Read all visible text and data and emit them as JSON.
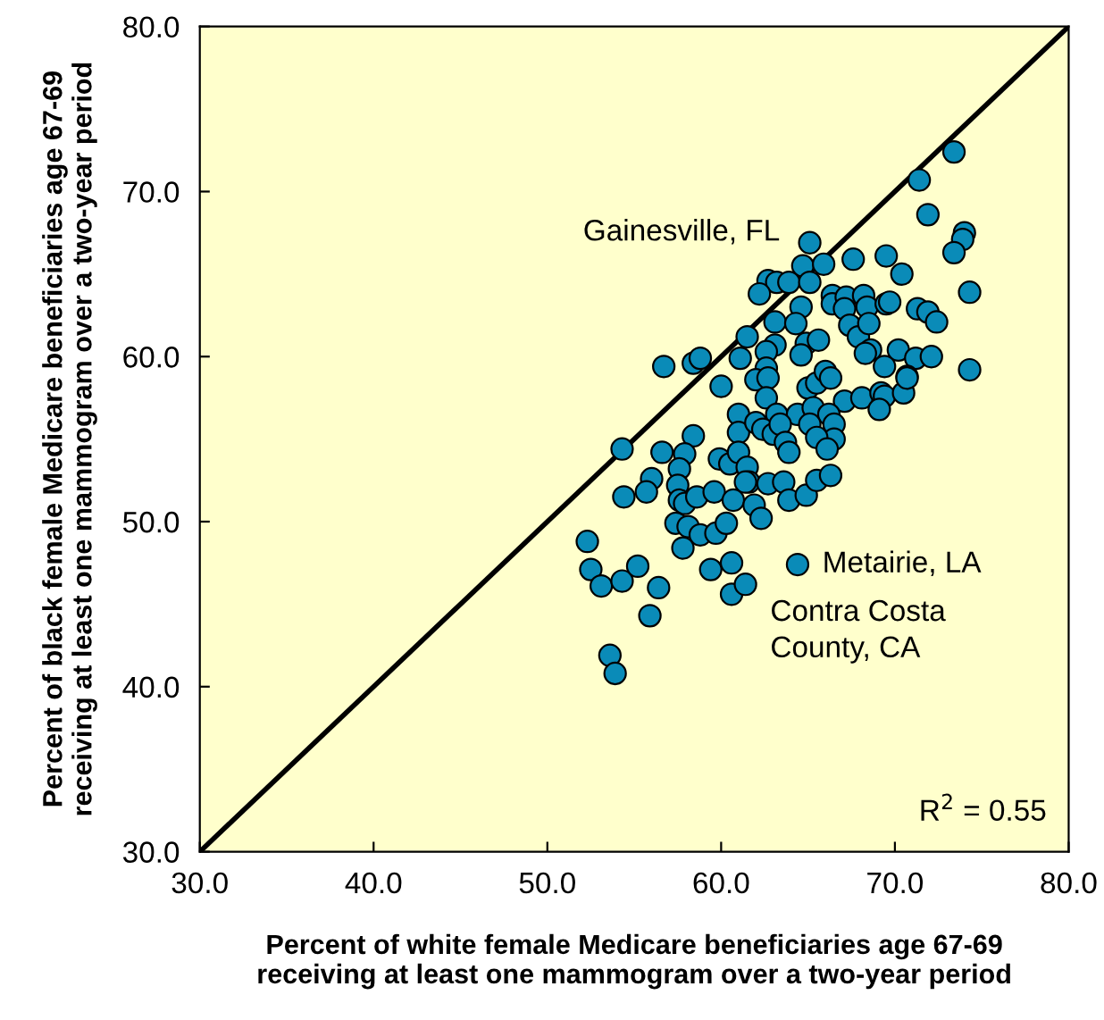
{
  "chart_data": {
    "type": "scatter",
    "xlabel": "Percent of white female Medicare beneficiaries age 67-69\nreceiving at least one mammogram over a two-year period",
    "ylabel": "Percent of black female Medicare beneficiaries age 67-69\nreceiving at least one mammogram over a two-year period",
    "xlim": [
      30,
      80
    ],
    "ylim": [
      30,
      80
    ],
    "xticks": [
      {
        "value": 30,
        "label": "30.0"
      },
      {
        "value": 40,
        "label": "40.0"
      },
      {
        "value": 50,
        "label": "50.0"
      },
      {
        "value": 60,
        "label": "60.0"
      },
      {
        "value": 70,
        "label": "70.0"
      },
      {
        "value": 80,
        "label": "80.0"
      }
    ],
    "yticks": [
      {
        "value": 30,
        "label": "30.0"
      },
      {
        "value": 40,
        "label": "40.0"
      },
      {
        "value": 50,
        "label": "50.0"
      },
      {
        "value": 60,
        "label": "60.0"
      },
      {
        "value": 70,
        "label": "70.0"
      },
      {
        "value": 80,
        "label": "80.0"
      }
    ],
    "grid": false,
    "legend": false,
    "marker": "circle",
    "series": [
      {
        "color": "#0a8bb8",
        "x": [
          73.4,
          71.4,
          71.9,
          74.0,
          73.9,
          73.4,
          65.1,
          64.7,
          65.9,
          67.6,
          69.5,
          70.4,
          74.3,
          62.7,
          63.2,
          63.9,
          65.1,
          62.2,
          64.6,
          66.4,
          66.4,
          67.2,
          68.2,
          68.4,
          67.1,
          69.5,
          69.7,
          71.3,
          71.9,
          72.4,
          63.1,
          64.3,
          67.4,
          67.9,
          68.5,
          61.5,
          63.1,
          62.6,
          64.9,
          65.6,
          64.6,
          68.6,
          68.3,
          70.2,
          71.2,
          72.1,
          56.7,
          58.4,
          58.8,
          61.1,
          62.6,
          69.4,
          74.3,
          60.0,
          70.7,
          62.0,
          62.7,
          62.6,
          65.0,
          65.5,
          66.0,
          66.3,
          67.1,
          68.1,
          69.2,
          69.4,
          70.5,
          70.7,
          69.1,
          61.0,
          61.0,
          62.0,
          63.2,
          64.4,
          65.3,
          66.2,
          62.4,
          63.0,
          63.4,
          65.1,
          66.5,
          66.5,
          63.7,
          63.9,
          65.5,
          66.1,
          58.4,
          54.3,
          56.6,
          57.9,
          59.9,
          60.5,
          61.0,
          61.5,
          61.6,
          57.6,
          57.5,
          57.6,
          57.9,
          58.6,
          59.6,
          60.7,
          61.4,
          62.7,
          63.6,
          63.9,
          64.9,
          65.5,
          66.3,
          56.0,
          55.7,
          54.4,
          61.9,
          62.3,
          57.4,
          58.1,
          58.8,
          59.7,
          60.3,
          57.8,
          52.3,
          64.4,
          52.5,
          53.1,
          54.3,
          55.2,
          56.4,
          59.4,
          60.6,
          60.6,
          61.4,
          55.9,
          53.6,
          53.9
        ],
        "values": [
          72.4,
          70.7,
          68.6,
          67.5,
          67.1,
          66.3,
          66.9,
          65.5,
          65.6,
          65.9,
          66.1,
          65.0,
          63.9,
          64.6,
          64.5,
          64.5,
          64.5,
          63.8,
          63.0,
          63.7,
          63.2,
          63.6,
          63.7,
          63.0,
          62.9,
          63.2,
          63.3,
          62.9,
          62.7,
          62.1,
          62.1,
          62.0,
          61.9,
          61.2,
          62.0,
          61.2,
          60.7,
          60.3,
          60.8,
          61.0,
          60.1,
          60.4,
          60.2,
          60.4,
          59.9,
          60.0,
          59.4,
          59.6,
          59.9,
          59.9,
          59.3,
          59.4,
          59.2,
          58.2,
          58.8,
          58.6,
          58.7,
          57.5,
          58.1,
          58.4,
          59.1,
          58.7,
          57.3,
          57.5,
          57.8,
          57.6,
          57.8,
          58.7,
          56.8,
          56.5,
          55.4,
          56.0,
          56.5,
          56.5,
          56.9,
          56.5,
          55.6,
          55.3,
          55.9,
          55.9,
          55.9,
          55.0,
          54.8,
          54.2,
          55.1,
          54.4,
          55.2,
          54.4,
          54.2,
          54.1,
          53.8,
          53.5,
          54.2,
          53.3,
          52.4,
          53.2,
          52.2,
          51.3,
          51.1,
          51.5,
          51.8,
          51.3,
          52.4,
          52.3,
          52.4,
          51.3,
          51.6,
          52.5,
          52.8,
          52.6,
          51.8,
          51.5,
          51.0,
          50.2,
          49.9,
          49.7,
          49.2,
          49.3,
          49.9,
          48.4,
          48.8,
          47.4,
          47.1,
          46.1,
          46.4,
          47.3,
          46.0,
          47.1,
          47.5,
          45.6,
          46.2,
          44.3,
          41.9,
          40.8
        ]
      },
      {
        "type": "line",
        "color": "#000000",
        "x": [
          30,
          80
        ],
        "values": [
          30,
          80
        ],
        "marker": "none",
        "line_style": "solid"
      }
    ],
    "annotations": [
      {
        "text": "Gainesville, FL",
        "x": 65.1,
        "y": 66.9
      },
      {
        "text": "Metairie, LA",
        "x": 64.4,
        "y": 47.4
      },
      {
        "text": "Contra Costa\nCounty, CA",
        "x": 61.4,
        "y": 46.2
      },
      "R$^{2}$ = 0.55"
    ]
  }
}
